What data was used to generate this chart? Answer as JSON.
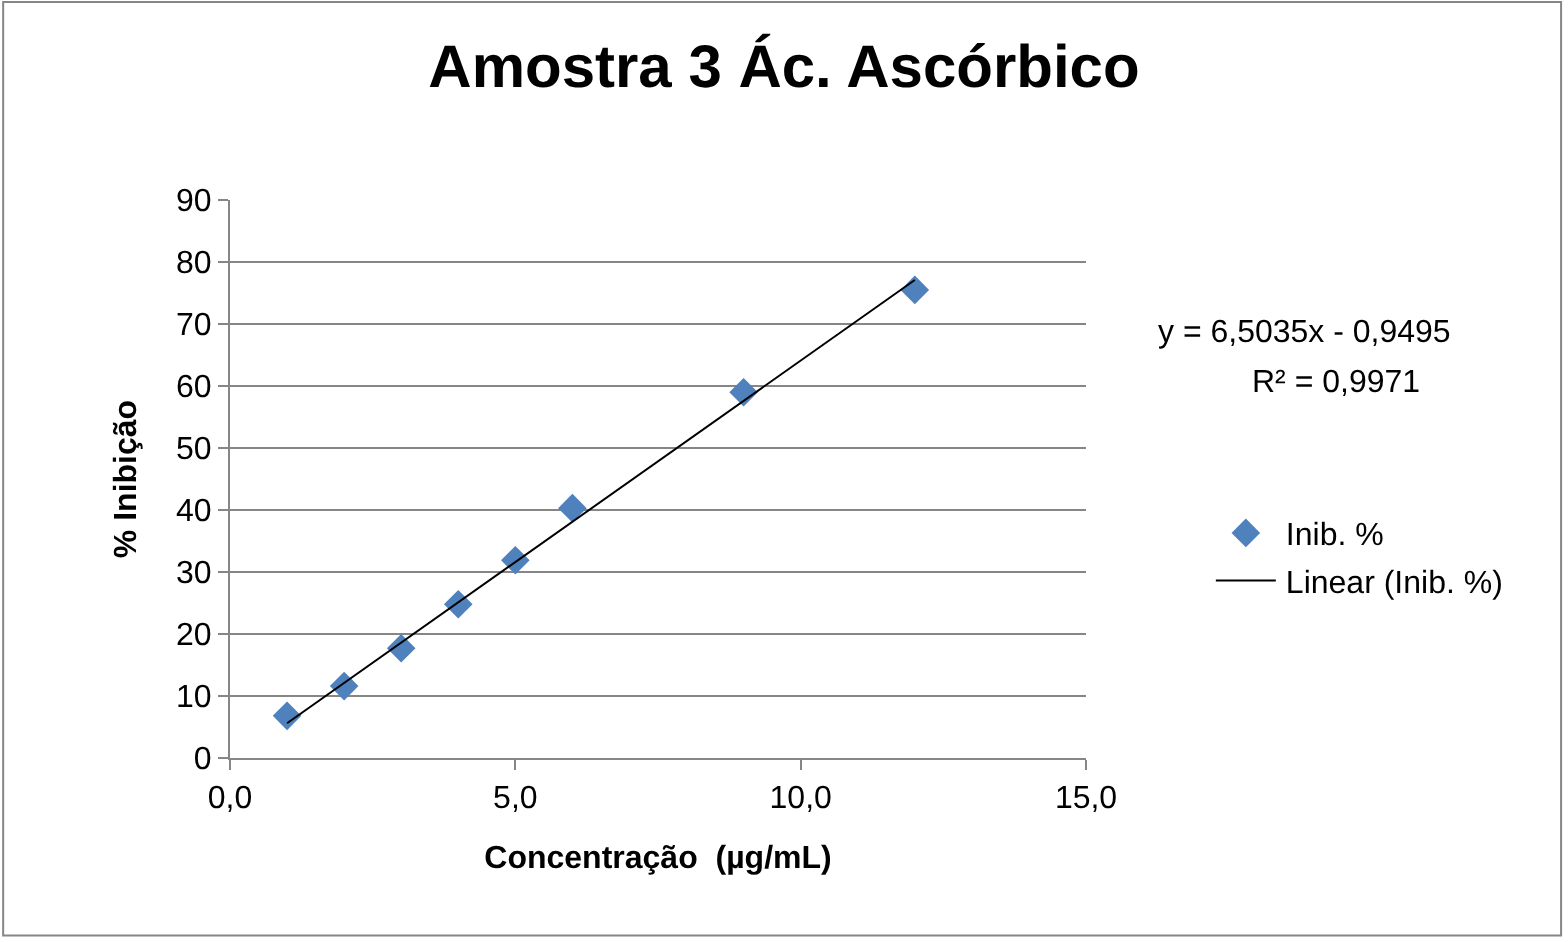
{
  "chart_data": {
    "type": "scatter",
    "title": "Amostra 3 Ác. Ascórbico",
    "xlabel": "Concentração  (µg/mL)",
    "ylabel": "% Inibição",
    "xlim": [
      0,
      15
    ],
    "xticks": [
      {
        "value": 0,
        "label": "0,0"
      },
      {
        "value": 5,
        "label": "5,0"
      },
      {
        "value": 10,
        "label": "10,0"
      },
      {
        "value": 15,
        "label": "15,0"
      }
    ],
    "ylim": [
      0,
      90
    ],
    "yticks": [
      0,
      10,
      20,
      30,
      40,
      50,
      60,
      70,
      80,
      90
    ],
    "grid": "y",
    "legend": "right",
    "marker": "diamond",
    "series": [
      {
        "name": "Inib. %",
        "color": "#4f81bd",
        "x": [
          1,
          2,
          3,
          4,
          5,
          6,
          9,
          12
        ],
        "values": [
          6.8,
          11.6,
          17.7,
          24.8,
          31.9,
          40.3,
          59.0,
          75.5
        ]
      },
      {
        "name": "Linear (Inib. %)",
        "type": "line",
        "color": "#000000",
        "marker": "none",
        "x": [
          1,
          12
        ],
        "values": [
          5.6,
          77.1
        ]
      }
    ],
    "annotations": [
      "y = 6,5035x - 0,9495",
      "R² = 0,9971"
    ]
  }
}
